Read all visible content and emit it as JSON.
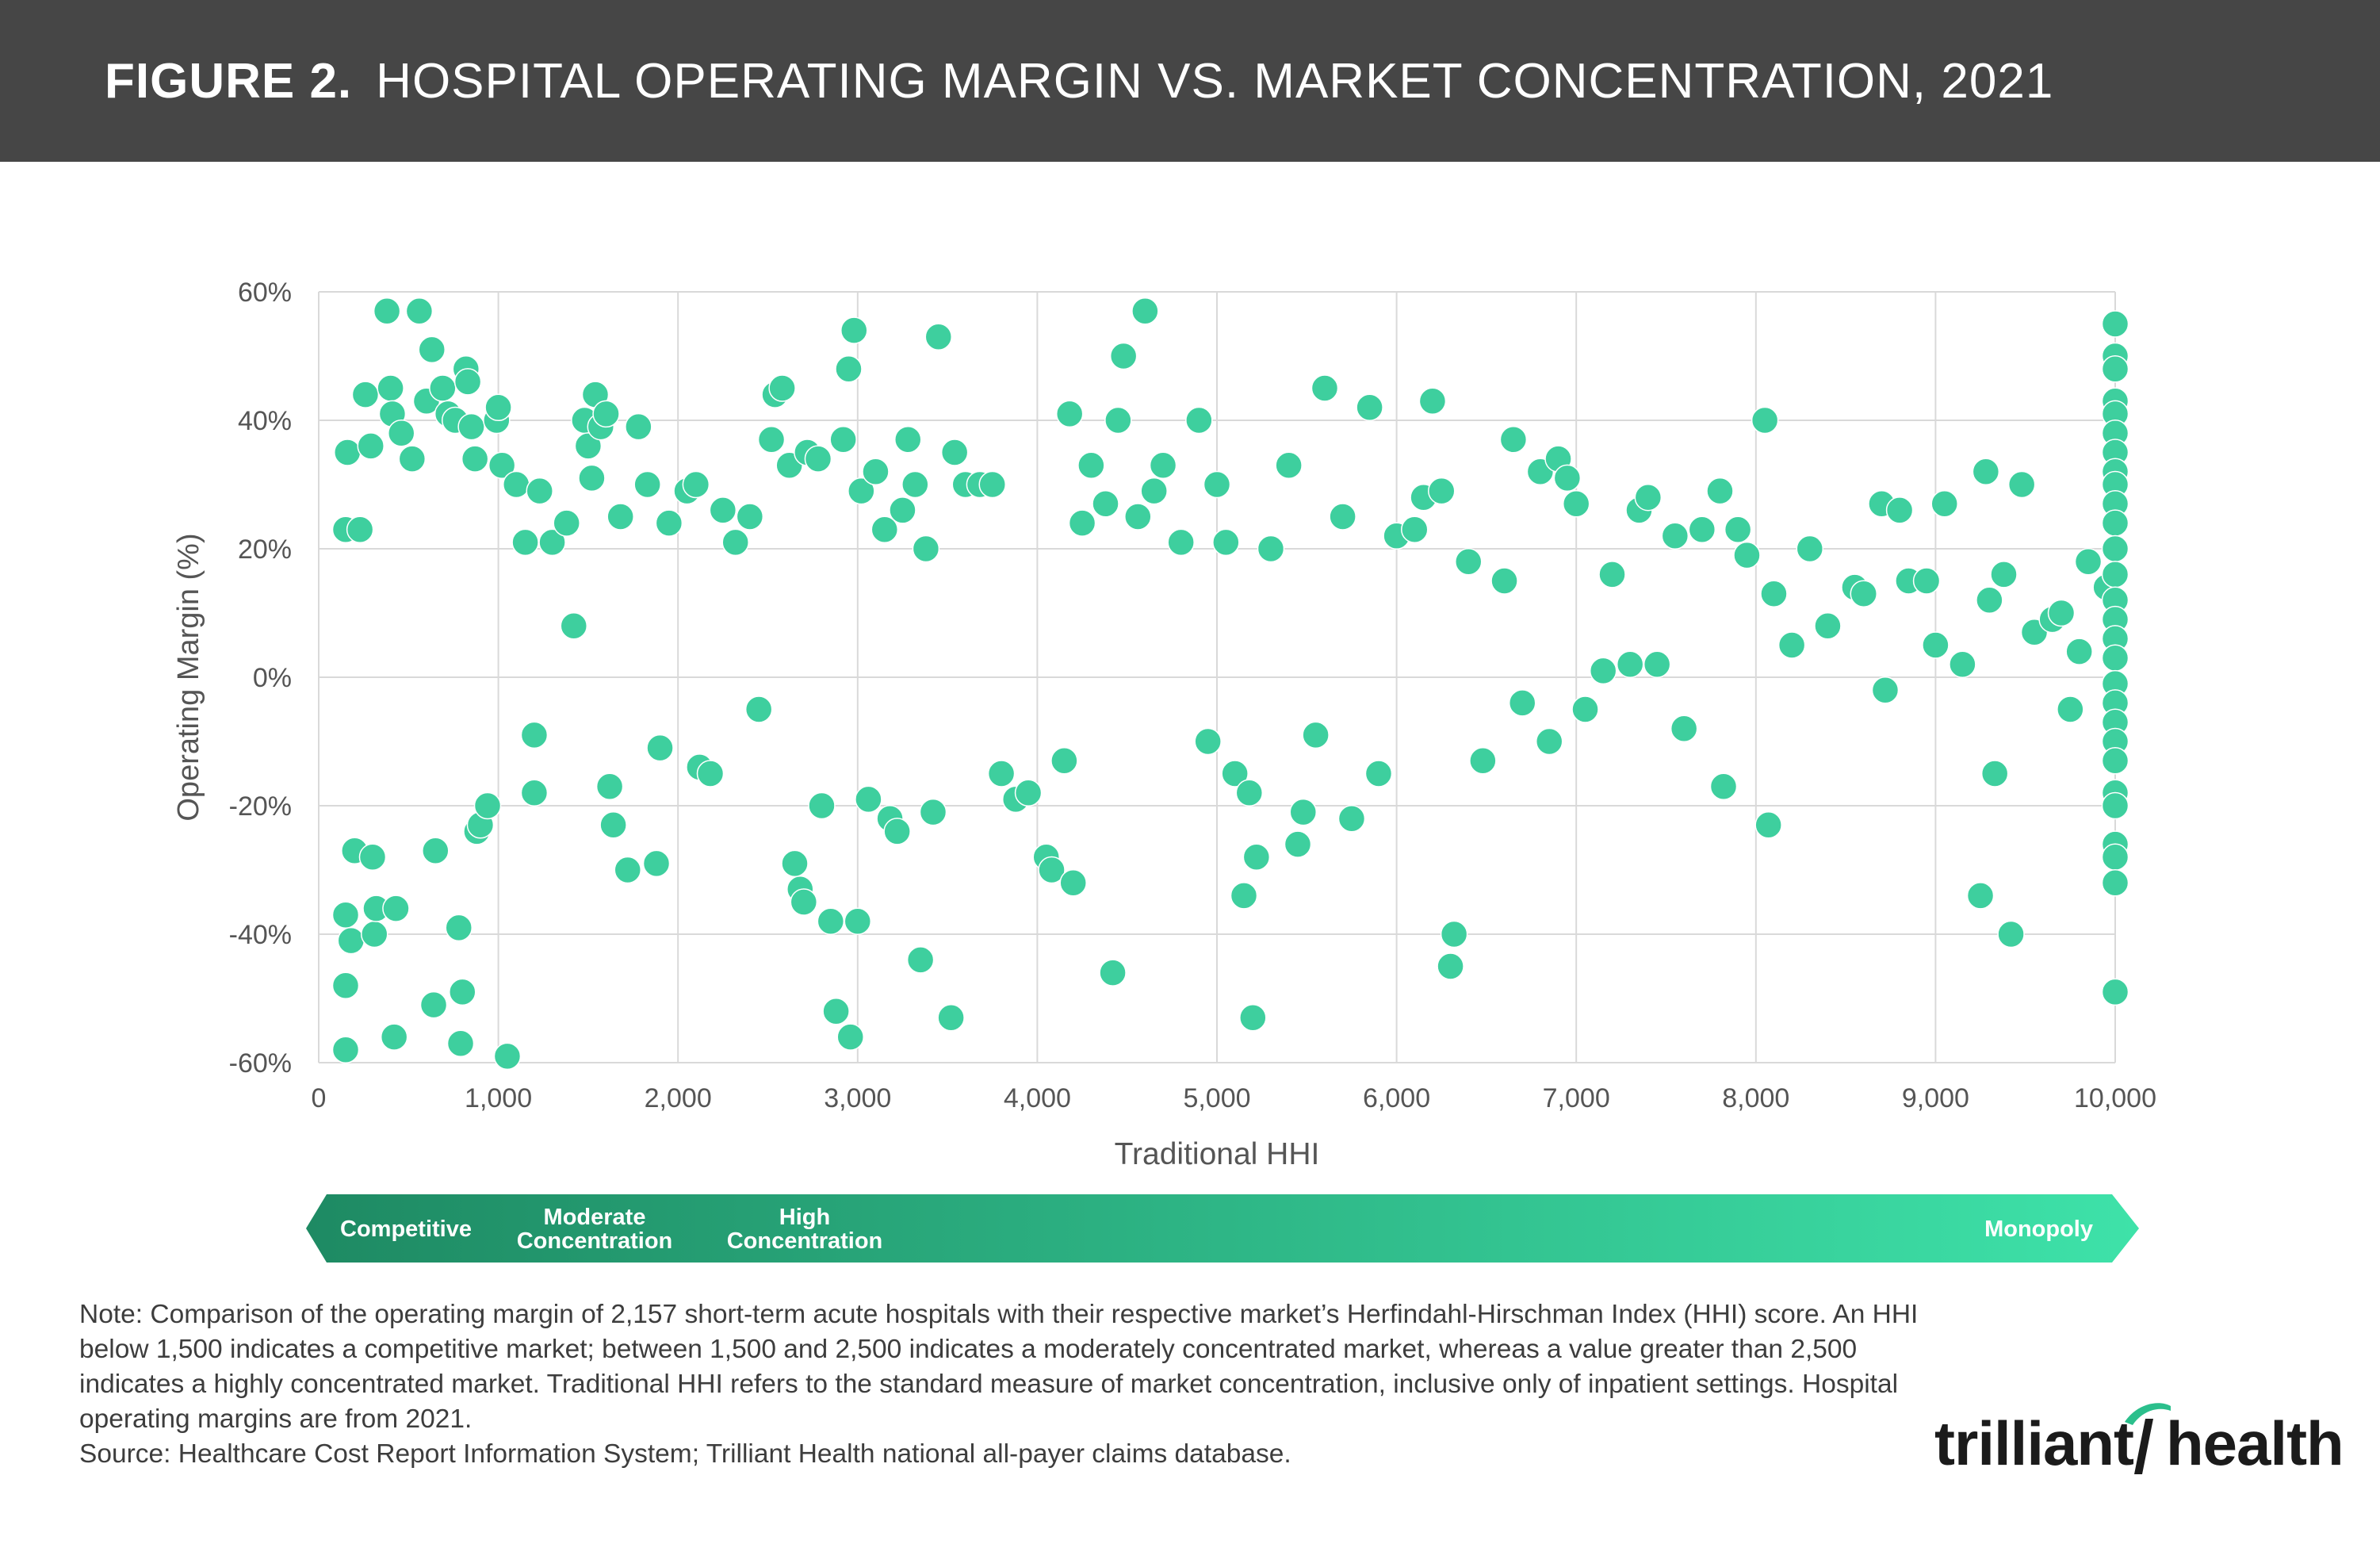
{
  "header": {
    "figure_label": "FIGURE 2.",
    "title": "HOSPITAL OPERATING MARGIN VS. MARKET CONCENTRATION, 2021"
  },
  "chart_data": {
    "type": "scatter",
    "title": "HOSPITAL OPERATING MARGIN VS. MARKET CONCENTRATION, 2021",
    "xlabel": "Traditional HHI",
    "ylabel": "Operating Margin (%)",
    "xlim": [
      0,
      10000
    ],
    "ylim": [
      -60,
      60
    ],
    "x_ticks": [
      0,
      1000,
      2000,
      3000,
      4000,
      5000,
      6000,
      7000,
      8000,
      9000,
      10000
    ],
    "x_tick_labels": [
      "0",
      "1,000",
      "2,000",
      "3,000",
      "4,000",
      "5,000",
      "6,000",
      "7,000",
      "8,000",
      "9,000",
      "10,000"
    ],
    "y_ticks": [
      -60,
      -40,
      -20,
      0,
      20,
      40,
      60
    ],
    "y_tick_labels": [
      "-60%",
      "-40%",
      "-20%",
      "0%",
      "20%",
      "40%",
      "60%"
    ],
    "grid": true,
    "marker_color": "#3ecf9e",
    "marker_edge_color": "#ffffff",
    "series": [
      {
        "points": [
          [
            160,
            35
          ],
          [
            150,
            23
          ],
          [
            150,
            -58
          ],
          [
            150,
            -48
          ],
          [
            150,
            -37
          ],
          [
            180,
            -41
          ],
          [
            200,
            -27
          ],
          [
            230,
            23
          ],
          [
            260,
            44
          ],
          [
            290,
            36
          ],
          [
            300,
            -28
          ],
          [
            310,
            -40
          ],
          [
            320,
            -36
          ],
          [
            380,
            57
          ],
          [
            400,
            45
          ],
          [
            410,
            41
          ],
          [
            420,
            -56
          ],
          [
            430,
            -36
          ],
          [
            460,
            38
          ],
          [
            520,
            34
          ],
          [
            560,
            57
          ],
          [
            600,
            43
          ],
          [
            630,
            51
          ],
          [
            640,
            -51
          ],
          [
            650,
            -27
          ],
          [
            690,
            45
          ],
          [
            720,
            41
          ],
          [
            760,
            40
          ],
          [
            780,
            -39
          ],
          [
            790,
            -57
          ],
          [
            800,
            -49
          ],
          [
            820,
            48
          ],
          [
            830,
            46
          ],
          [
            850,
            39
          ],
          [
            870,
            34
          ],
          [
            880,
            -24
          ],
          [
            900,
            -23
          ],
          [
            940,
            -20
          ],
          [
            990,
            40
          ],
          [
            1000,
            42
          ],
          [
            1020,
            33
          ],
          [
            1050,
            -59
          ],
          [
            1100,
            30
          ],
          [
            1150,
            21
          ],
          [
            1200,
            -18
          ],
          [
            1200,
            -9
          ],
          [
            1230,
            29
          ],
          [
            1300,
            21
          ],
          [
            1380,
            24
          ],
          [
            1420,
            8
          ],
          [
            1480,
            40
          ],
          [
            1500,
            36
          ],
          [
            1520,
            31
          ],
          [
            1540,
            44
          ],
          [
            1570,
            39
          ],
          [
            1600,
            41
          ],
          [
            1620,
            -17
          ],
          [
            1640,
            -23
          ],
          [
            1680,
            25
          ],
          [
            1720,
            -30
          ],
          [
            1780,
            39
          ],
          [
            1830,
            30
          ],
          [
            1880,
            -29
          ],
          [
            1900,
            -11
          ],
          [
            1950,
            24
          ],
          [
            2050,
            29
          ],
          [
            2100,
            30
          ],
          [
            2120,
            -14
          ],
          [
            2180,
            -15
          ],
          [
            2250,
            26
          ],
          [
            2320,
            21
          ],
          [
            2400,
            25
          ],
          [
            2450,
            -5
          ],
          [
            2520,
            37
          ],
          [
            2540,
            44
          ],
          [
            2580,
            45
          ],
          [
            2620,
            33
          ],
          [
            2650,
            -29
          ],
          [
            2680,
            -33
          ],
          [
            2700,
            -35
          ],
          [
            2720,
            35
          ],
          [
            2780,
            34
          ],
          [
            2800,
            -20
          ],
          [
            2850,
            -38
          ],
          [
            2880,
            -52
          ],
          [
            2920,
            37
          ],
          [
            2950,
            48
          ],
          [
            2960,
            -56
          ],
          [
            2980,
            54
          ],
          [
            3000,
            -38
          ],
          [
            3020,
            29
          ],
          [
            3060,
            -19
          ],
          [
            3100,
            32
          ],
          [
            3150,
            23
          ],
          [
            3180,
            -22
          ],
          [
            3220,
            -24
          ],
          [
            3250,
            26
          ],
          [
            3280,
            37
          ],
          [
            3320,
            30
          ],
          [
            3350,
            -44
          ],
          [
            3380,
            20
          ],
          [
            3420,
            -21
          ],
          [
            3450,
            53
          ],
          [
            3520,
            -53
          ],
          [
            3540,
            35
          ],
          [
            3600,
            30
          ],
          [
            3680,
            30
          ],
          [
            3750,
            30
          ],
          [
            3800,
            -15
          ],
          [
            3880,
            -19
          ],
          [
            3950,
            -18
          ],
          [
            4050,
            -28
          ],
          [
            4080,
            -30
          ],
          [
            4150,
            -13
          ],
          [
            4180,
            41
          ],
          [
            4200,
            -32
          ],
          [
            4250,
            24
          ],
          [
            4300,
            33
          ],
          [
            4380,
            27
          ],
          [
            4420,
            -46
          ],
          [
            4450,
            40
          ],
          [
            4480,
            50
          ],
          [
            4560,
            25
          ],
          [
            4600,
            57
          ],
          [
            4650,
            29
          ],
          [
            4700,
            33
          ],
          [
            4800,
            21
          ],
          [
            4900,
            40
          ],
          [
            4950,
            -10
          ],
          [
            5000,
            30
          ],
          [
            5050,
            21
          ],
          [
            5100,
            -15
          ],
          [
            5150,
            -34
          ],
          [
            5180,
            -18
          ],
          [
            5200,
            -53
          ],
          [
            5220,
            -28
          ],
          [
            5300,
            20
          ],
          [
            5400,
            33
          ],
          [
            5450,
            -26
          ],
          [
            5480,
            -21
          ],
          [
            5550,
            -9
          ],
          [
            5600,
            45
          ],
          [
            5700,
            25
          ],
          [
            5750,
            -22
          ],
          [
            5850,
            42
          ],
          [
            5900,
            -15
          ],
          [
            6000,
            22
          ],
          [
            6100,
            23
          ],
          [
            6150,
            28
          ],
          [
            6200,
            43
          ],
          [
            6250,
            29
          ],
          [
            6300,
            -45
          ],
          [
            6320,
            -40
          ],
          [
            6400,
            18
          ],
          [
            6480,
            -13
          ],
          [
            6600,
            15
          ],
          [
            6650,
            37
          ],
          [
            6700,
            -4
          ],
          [
            6800,
            32
          ],
          [
            6850,
            -10
          ],
          [
            6900,
            34
          ],
          [
            6950,
            31
          ],
          [
            7000,
            27
          ],
          [
            7050,
            -5
          ],
          [
            7150,
            1
          ],
          [
            7200,
            16
          ],
          [
            7300,
            2
          ],
          [
            7350,
            26
          ],
          [
            7400,
            28
          ],
          [
            7450,
            2
          ],
          [
            7550,
            22
          ],
          [
            7600,
            -8
          ],
          [
            7700,
            23
          ],
          [
            7800,
            29
          ],
          [
            7820,
            -17
          ],
          [
            7900,
            23
          ],
          [
            7950,
            19
          ],
          [
            8050,
            40
          ],
          [
            8070,
            -23
          ],
          [
            8100,
            13
          ],
          [
            8200,
            5
          ],
          [
            8300,
            20
          ],
          [
            8400,
            8
          ],
          [
            8550,
            14
          ],
          [
            8600,
            13
          ],
          [
            8700,
            27
          ],
          [
            8720,
            -2
          ],
          [
            8800,
            26
          ],
          [
            8850,
            15
          ],
          [
            8950,
            15
          ],
          [
            9000,
            5
          ],
          [
            9050,
            27
          ],
          [
            9150,
            2
          ],
          [
            9250,
            -34
          ],
          [
            9280,
            32
          ],
          [
            9300,
            12
          ],
          [
            9330,
            -15
          ],
          [
            9380,
            16
          ],
          [
            9420,
            -40
          ],
          [
            9480,
            30
          ],
          [
            9550,
            7
          ],
          [
            9650,
            9
          ],
          [
            9700,
            10
          ],
          [
            9750,
            -5
          ],
          [
            9800,
            4
          ],
          [
            9850,
            18
          ],
          [
            9950,
            14
          ],
          [
            10000,
            55
          ],
          [
            10000,
            50
          ],
          [
            10000,
            48
          ],
          [
            10000,
            43
          ],
          [
            10000,
            41
          ],
          [
            10000,
            38
          ],
          [
            10000,
            35
          ],
          [
            10000,
            32
          ],
          [
            10000,
            30
          ],
          [
            10000,
            27
          ],
          [
            10000,
            24
          ],
          [
            10000,
            20
          ],
          [
            10000,
            16
          ],
          [
            10000,
            12
          ],
          [
            10000,
            9
          ],
          [
            10000,
            6
          ],
          [
            10000,
            3
          ],
          [
            10000,
            -1
          ],
          [
            10000,
            -4
          ],
          [
            10000,
            -7
          ],
          [
            10000,
            -10
          ],
          [
            10000,
            -13
          ],
          [
            10000,
            -18
          ],
          [
            10000,
            -20
          ],
          [
            10000,
            -26
          ],
          [
            10000,
            -28
          ],
          [
            10000,
            -32
          ],
          [
            10000,
            -49
          ]
        ]
      }
    ]
  },
  "scale_bar": {
    "labels": [
      "Competitive",
      "Moderate\nConcentration",
      "High\nConcentration",
      "Monopoly"
    ],
    "color_start": "#1e8a63",
    "color_end": "#3ee2a9"
  },
  "note": {
    "text": "Note: Comparison of the operating margin of 2,157 short-term acute hospitals with their respective market’s Herfindahl-Hirschman Index (HHI) score. An HHI below 1,500 indicates a competitive market; between 1,500 and 2,500 indicates a moderately concentrated market, whereas a value greater than 2,500 indicates a highly concentrated market. Traditional HHI refers to the standard measure of market concentration, inclusive only of inpatient settings. Hospital operating margins are from 2021.",
    "source": "Source: Healthcare Cost Report Information System; Trilliant Health national all-payer claims database."
  },
  "logo": {
    "part1": "trilliant",
    "part2": "health",
    "mark_color": "#2bbf8c"
  }
}
